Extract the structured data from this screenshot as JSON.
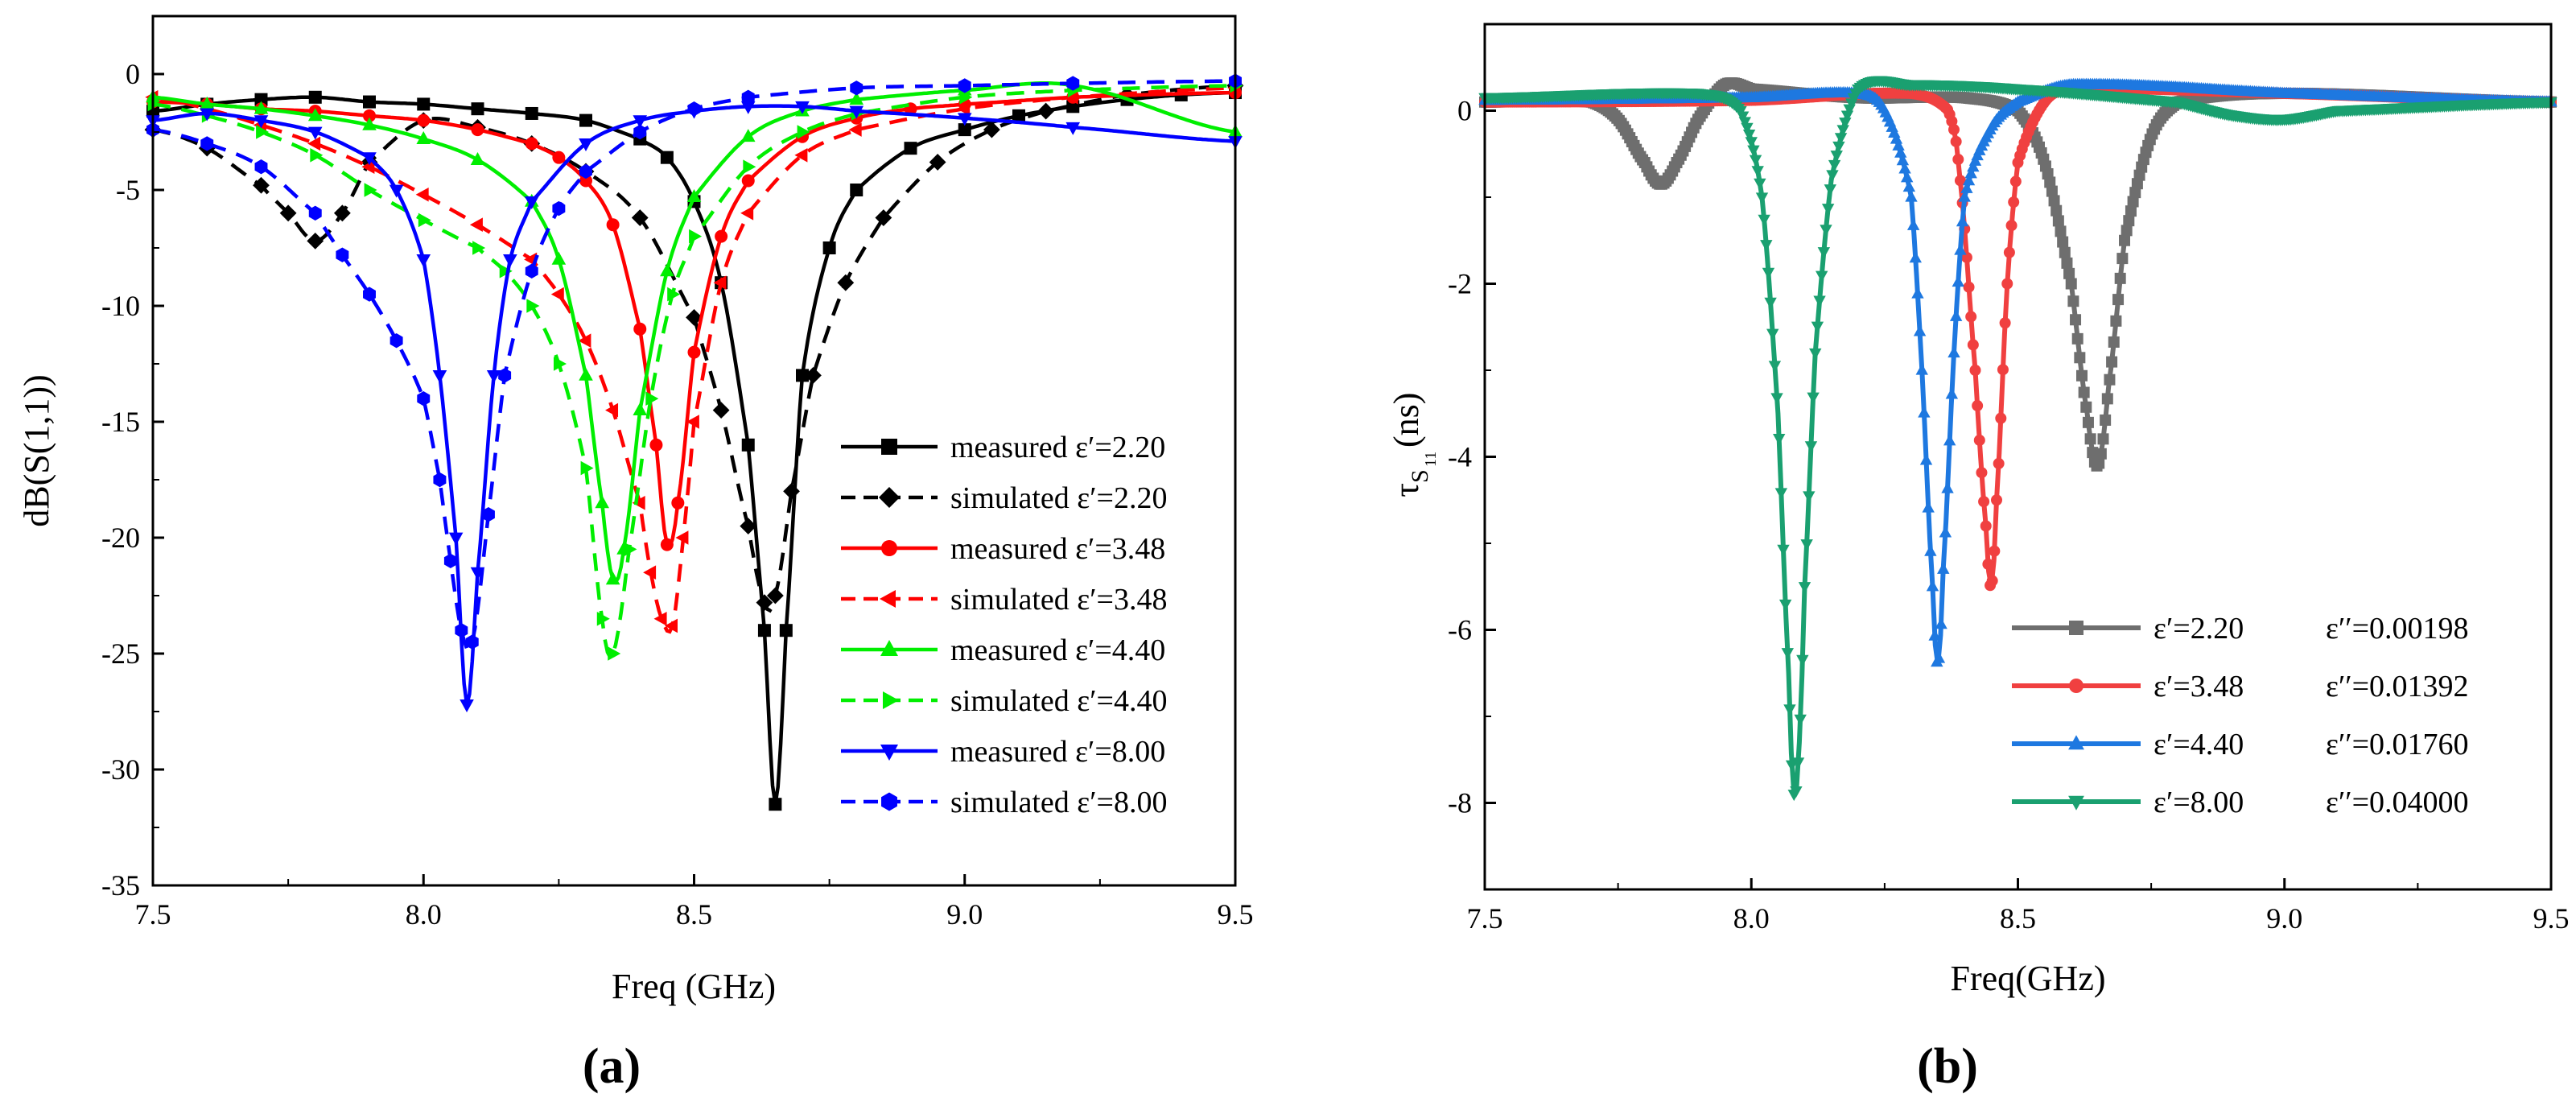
{
  "figure": {
    "panel_a_label": "(a)",
    "panel_b_label": "(b)"
  },
  "chart_data": [
    {
      "type": "line",
      "panel": "(a)",
      "title": "",
      "xlabel": "Freq (GHz)",
      "ylabel": "dB(S(1,1))",
      "xlim": [
        7.5,
        9.5
      ],
      "ylim": [
        -35,
        2.5
      ],
      "xticks": [
        7.5,
        8.0,
        8.5,
        9.0,
        9.5
      ],
      "xtick_labels": [
        "7.5",
        "8.0",
        "8.5",
        "9.0",
        "9.5"
      ],
      "yticks": [
        0,
        -5,
        -10,
        -15,
        -20,
        -25,
        -30,
        -35
      ],
      "ytick_labels": [
        "0",
        "-5",
        "-10",
        "-15",
        "-20",
        "-25",
        "-30",
        "-35"
      ],
      "legend_position": "lower-right",
      "series": [
        {
          "name": "measured ε′=2.20",
          "color": "#000000",
          "dash": "solid",
          "marker": "square",
          "x": [
            7.5,
            7.6,
            7.7,
            7.8,
            7.9,
            8.0,
            8.1,
            8.2,
            8.3,
            8.4,
            8.45,
            8.5,
            8.55,
            8.6,
            8.63,
            8.65,
            8.67,
            8.7,
            8.75,
            8.8,
            8.9,
            9.0,
            9.1,
            9.2,
            9.3,
            9.4,
            9.5
          ],
          "y": [
            -1.6,
            -1.3,
            -1.1,
            -1.0,
            -1.2,
            -1.3,
            -1.5,
            -1.7,
            -2.0,
            -2.8,
            -3.6,
            -5.5,
            -9,
            -16,
            -24,
            -31.5,
            -24,
            -13,
            -7.5,
            -5,
            -3.2,
            -2.4,
            -1.8,
            -1.4,
            -1.1,
            -0.9,
            -0.8
          ]
        },
        {
          "name": "simulated ε′=2.20",
          "color": "#000000",
          "dash": "dashed",
          "marker": "diamond",
          "x": [
            7.5,
            7.6,
            7.7,
            7.75,
            7.8,
            7.85,
            7.9,
            8.0,
            8.1,
            8.2,
            8.3,
            8.4,
            8.5,
            8.55,
            8.6,
            8.63,
            8.65,
            8.68,
            8.72,
            8.78,
            8.85,
            8.95,
            9.05,
            9.15,
            9.3,
            9.5
          ],
          "y": [
            -2.4,
            -3.2,
            -4.8,
            -6.0,
            -7.2,
            -6.0,
            -3.8,
            -2.0,
            -2.3,
            -3.0,
            -4.2,
            -6.2,
            -10.5,
            -14.5,
            -19.5,
            -22.8,
            -22.5,
            -18.0,
            -13.0,
            -9.0,
            -6.2,
            -3.8,
            -2.4,
            -1.6,
            -0.9,
            -0.5
          ]
        },
        {
          "name": "measured ε′=3.48",
          "color": "#ff0000",
          "dash": "solid",
          "marker": "circle",
          "x": [
            7.5,
            7.6,
            7.7,
            7.8,
            7.9,
            8.0,
            8.1,
            8.2,
            8.25,
            8.3,
            8.35,
            8.4,
            8.43,
            8.45,
            8.47,
            8.5,
            8.55,
            8.6,
            8.7,
            8.8,
            8.9,
            9.0,
            9.2,
            9.5
          ],
          "y": [
            -1.2,
            -1.3,
            -1.5,
            -1.6,
            -1.8,
            -2.0,
            -2.4,
            -3.0,
            -3.6,
            -4.6,
            -6.5,
            -11.0,
            -16.0,
            -20.3,
            -18.5,
            -12.0,
            -7.0,
            -4.6,
            -2.7,
            -1.9,
            -1.5,
            -1.3,
            -1.0,
            -0.8
          ]
        },
        {
          "name": "simulated ε′=3.48",
          "color": "#ff0000",
          "dash": "dashed",
          "marker": "triangle-left",
          "x": [
            7.5,
            7.6,
            7.7,
            7.8,
            7.9,
            8.0,
            8.1,
            8.2,
            8.25,
            8.3,
            8.35,
            8.4,
            8.42,
            8.44,
            8.46,
            8.48,
            8.5,
            8.55,
            8.6,
            8.7,
            8.8,
            9.0,
            9.2,
            9.5
          ],
          "y": [
            -1.0,
            -1.5,
            -2.2,
            -3.0,
            -4.0,
            -5.2,
            -6.5,
            -8.0,
            -9.5,
            -11.5,
            -14.5,
            -18.5,
            -21.5,
            -23.5,
            -23.8,
            -20.0,
            -15.0,
            -9.0,
            -6.0,
            -3.5,
            -2.4,
            -1.5,
            -1.0,
            -0.6
          ]
        },
        {
          "name": "measured ε′=4.40",
          "color": "#00ee00",
          "dash": "solid",
          "marker": "triangle-up",
          "x": [
            7.5,
            7.6,
            7.7,
            7.8,
            7.9,
            8.0,
            8.1,
            8.2,
            8.25,
            8.3,
            8.33,
            8.35,
            8.37,
            8.4,
            8.45,
            8.5,
            8.6,
            8.7,
            8.8,
            9.0,
            9.2,
            9.5
          ],
          "y": [
            -1.0,
            -1.3,
            -1.5,
            -1.8,
            -2.2,
            -2.8,
            -3.7,
            -5.5,
            -8.0,
            -13.0,
            -18.5,
            -21.8,
            -20.5,
            -14.5,
            -8.5,
            -5.3,
            -2.7,
            -1.6,
            -1.1,
            -0.7,
            -0.5,
            -2.5
          ]
        },
        {
          "name": "simulated ε′=4.40",
          "color": "#00ee00",
          "dash": "dashed",
          "marker": "triangle-right",
          "x": [
            7.5,
            7.6,
            7.7,
            7.8,
            7.9,
            8.0,
            8.1,
            8.15,
            8.2,
            8.25,
            8.3,
            8.33,
            8.35,
            8.38,
            8.42,
            8.46,
            8.5,
            8.6,
            8.7,
            8.8,
            9.0,
            9.2,
            9.5
          ],
          "y": [
            -1.3,
            -1.8,
            -2.5,
            -3.5,
            -5.0,
            -6.3,
            -7.5,
            -8.5,
            -10.0,
            -12.5,
            -17.0,
            -23.5,
            -25.0,
            -20.5,
            -14.0,
            -9.5,
            -7.0,
            -4.0,
            -2.5,
            -1.7,
            -1.0,
            -0.7,
            -0.5
          ]
        },
        {
          "name": "measured ε′=8.00",
          "color": "#0000ff",
          "dash": "solid",
          "marker": "triangle-down",
          "x": [
            7.5,
            7.6,
            7.7,
            7.8,
            7.9,
            7.95,
            8.0,
            8.03,
            8.06,
            8.08,
            8.1,
            8.13,
            8.16,
            8.2,
            8.3,
            8.4,
            8.5,
            8.6,
            8.7,
            8.8,
            9.0,
            9.2,
            9.5
          ],
          "y": [
            -2.0,
            -1.7,
            -2.0,
            -2.5,
            -3.6,
            -5.0,
            -8.0,
            -13.0,
            -20.0,
            -27.2,
            -21.5,
            -13.0,
            -8.0,
            -5.5,
            -3.0,
            -2.0,
            -1.6,
            -1.4,
            -1.4,
            -1.6,
            -1.9,
            -2.3,
            -2.9
          ]
        },
        {
          "name": "simulated ε′=8.00",
          "color": "#0000ff",
          "dash": "dashed",
          "marker": "hexagon",
          "x": [
            7.5,
            7.6,
            7.7,
            7.8,
            7.85,
            7.9,
            7.95,
            8.0,
            8.03,
            8.05,
            8.07,
            8.09,
            8.12,
            8.15,
            8.2,
            8.25,
            8.3,
            8.4,
            8.5,
            8.6,
            8.8,
            9.0,
            9.2,
            9.5
          ],
          "y": [
            -2.4,
            -3.0,
            -4.0,
            -6.0,
            -7.8,
            -9.5,
            -11.5,
            -14.0,
            -17.5,
            -21.0,
            -24.0,
            -24.5,
            -19.0,
            -13.0,
            -8.5,
            -5.8,
            -4.2,
            -2.5,
            -1.5,
            -1.0,
            -0.6,
            -0.5,
            -0.4,
            -0.3
          ]
        }
      ]
    },
    {
      "type": "line",
      "panel": "(b)",
      "title": "",
      "xlabel": "Freq(GHz)",
      "ylabel_main": "τ",
      "ylabel_sub": "S",
      "ylabel_subsub": "11",
      "ylabel_unit": "(ns)",
      "xlim": [
        7.5,
        9.5
      ],
      "ylim": [
        -9,
        1
      ],
      "xticks": [
        7.5,
        8.0,
        8.5,
        9.0,
        9.5
      ],
      "xtick_labels": [
        "7.5",
        "8.0",
        "8.5",
        "9.0",
        "9.5"
      ],
      "yticks": [
        0,
        -2,
        -4,
        -6,
        -8
      ],
      "ytick_labels": [
        "0",
        "-2",
        "-4",
        "-6",
        "-8"
      ],
      "legend_position": "lower-right",
      "series": [
        {
          "name": "ε′=2.20",
          "loss": "ε′′=0.00198",
          "color": "#6e6e6e",
          "marker": "square",
          "x": [
            7.5,
            7.7,
            7.75,
            7.8,
            7.83,
            7.86,
            7.9,
            7.95,
            8.0,
            8.2,
            8.4,
            8.5,
            8.55,
            8.6,
            8.63,
            8.65,
            8.67,
            8.7,
            8.75,
            8.8,
            9.0,
            9.5
          ],
          "y": [
            0.1,
            0.1,
            -0.1,
            -0.6,
            -0.85,
            -0.6,
            -0.1,
            0.3,
            0.25,
            0.15,
            0.15,
            0.0,
            -0.6,
            -2.0,
            -3.5,
            -4.1,
            -3.2,
            -1.5,
            -0.3,
            0.1,
            0.2,
            0.1
          ]
        },
        {
          "name": "ε′=3.48",
          "loss": "ε′′=0.01392",
          "color": "#f04040",
          "marker": "circle",
          "x": [
            7.5,
            8.0,
            8.3,
            8.37,
            8.39,
            8.42,
            8.44,
            8.45,
            8.46,
            8.48,
            8.5,
            8.55,
            8.6,
            9.0,
            9.5
          ],
          "y": [
            0.1,
            0.12,
            0.2,
            0.0,
            -0.7,
            -3.0,
            -4.8,
            -5.5,
            -4.5,
            -2.0,
            -0.6,
            0.1,
            0.25,
            0.2,
            0.1
          ]
        },
        {
          "name": "ε′=4.40",
          "loss": "ε′′=0.01760",
          "color": "#1e78e0",
          "marker": "triangle-up",
          "x": [
            7.5,
            8.0,
            8.2,
            8.25,
            8.3,
            8.32,
            8.34,
            8.35,
            8.36,
            8.38,
            8.4,
            8.45,
            8.5,
            8.6,
            9.0,
            9.5
          ],
          "y": [
            0.12,
            0.15,
            0.2,
            0.0,
            -1.0,
            -3.0,
            -5.5,
            -6.4,
            -5.3,
            -2.8,
            -1.0,
            -0.2,
            0.1,
            0.3,
            0.2,
            0.1
          ]
        },
        {
          "name": "ε′=8.00",
          "loss": "ε′′=0.04000",
          "color": "#1aa070",
          "marker": "triangle-down",
          "x": [
            7.5,
            7.9,
            7.98,
            8.02,
            8.05,
            8.07,
            8.08,
            8.09,
            8.1,
            8.12,
            8.15,
            8.2,
            8.3,
            8.5,
            8.8,
            8.9,
            9.0,
            9.1,
            9.5
          ],
          "y": [
            0.15,
            0.2,
            0.0,
            -1.0,
            -3.5,
            -6.5,
            -7.9,
            -7.3,
            -5.5,
            -2.8,
            -0.8,
            0.25,
            0.3,
            0.25,
            0.1,
            -0.05,
            -0.1,
            0.0,
            0.1
          ]
        }
      ]
    }
  ]
}
